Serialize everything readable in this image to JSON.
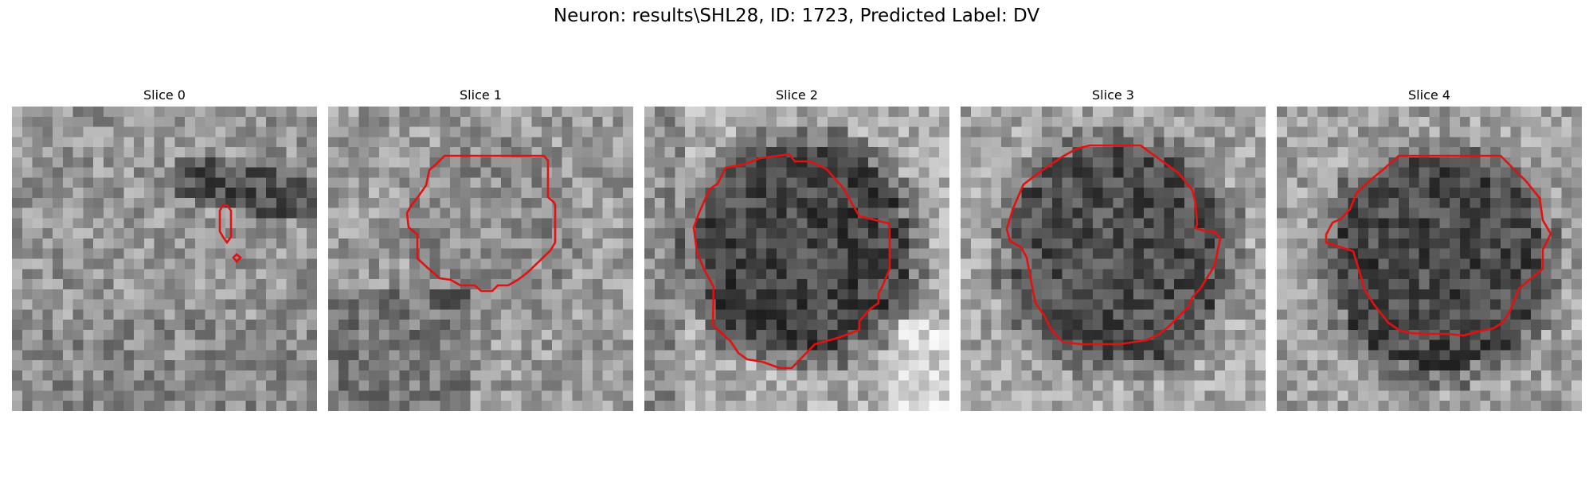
{
  "figure": {
    "title": "Neuron: results\\SHL28, ID: 1723, Predicted Label: DV"
  },
  "slices": [
    {
      "title": "Slice 0",
      "description": "grayscale microscopy tile, mostly mid-grey noise with a dark streak across the top right; two tiny red contours near the centre"
    },
    {
      "title": "Slice 1",
      "description": "grayscale microscopy tile with a faint round cell body outlined by an irregular red contour"
    },
    {
      "title": "Slice 2",
      "description": "grayscale microscopy tile with a dark round cell body outlined by a red contour"
    },
    {
      "title": "Slice 3",
      "description": "grayscale microscopy tile with a dark round cell body outlined by a red contour"
    },
    {
      "title": "Slice 4",
      "description": "grayscale microscopy tile with a dark round cell body outlined by a near-octagonal red contour"
    }
  ],
  "colors": {
    "contour": "#e3110f",
    "background": "#ffffff"
  }
}
